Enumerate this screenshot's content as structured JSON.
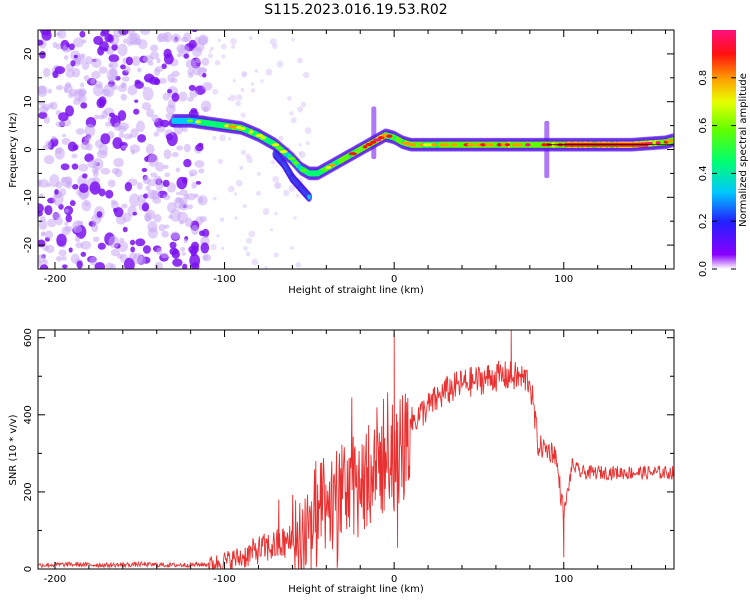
{
  "title": "S115.2023.016.19.53.R02",
  "chart_data": [
    {
      "type": "heatmap",
      "xlabel": "Height of straight line (km)",
      "ylabel": "Frequency (Hz)",
      "xlim": [
        -210,
        165
      ],
      "ylim": [
        -25,
        25
      ],
      "xticks": [
        -200,
        -100,
        0,
        100
      ],
      "yticks": [
        -20,
        -10,
        0,
        10,
        20
      ],
      "colorbar": {
        "label": "Normalized spectral amplitude",
        "range": [
          0,
          1
        ],
        "ticks": [
          "0.0",
          "0.2",
          "0.4",
          "0.6",
          "0.8"
        ],
        "tick_values": [
          0,
          0.2,
          0.4,
          0.6,
          0.8
        ]
      },
      "noise_region": {
        "x_range": [
          -210,
          -110
        ],
        "y_range": [
          -25,
          25
        ]
      },
      "ridge": {
        "x": [
          -130,
          -120,
          -110,
          -100,
          -90,
          -80,
          -70,
          -60,
          -55,
          -50,
          -45,
          -40,
          -35,
          -30,
          -25,
          -20,
          -15,
          -10,
          -5,
          0,
          5,
          10,
          20,
          40,
          60,
          80,
          90,
          100,
          120,
          140,
          160,
          165
        ],
        "y": [
          6,
          6,
          5.5,
          5,
          4.5,
          3,
          1,
          -2,
          -4,
          -5,
          -5,
          -4,
          -3,
          -2,
          -1,
          0,
          1,
          2,
          3,
          2.5,
          1.5,
          1,
          1,
          1,
          1,
          1,
          1,
          1,
          1,
          1,
          1.5,
          2
        ],
        "amplitude": [
          0.35,
          0.4,
          0.5,
          0.55,
          0.6,
          0.55,
          0.5,
          0.45,
          0.45,
          0.5,
          0.5,
          0.55,
          0.6,
          0.65,
          0.65,
          0.65,
          0.7,
          0.75,
          0.7,
          0.65,
          0.65,
          0.65,
          0.65,
          0.7,
          0.7,
          0.75,
          0.75,
          0.8,
          0.85,
          0.85,
          0.8,
          0.7
        ]
      },
      "secondary_ridge": {
        "x": [
          -70,
          -65,
          -60,
          -55,
          -50
        ],
        "y": [
          -1,
          -3,
          -6,
          -8,
          -10
        ]
      },
      "vertical_streaks": [
        {
          "x": -12,
          "y_range": [
            -2,
            9
          ]
        },
        {
          "x": 90,
          "y_range": [
            -6,
            6
          ]
        }
      ]
    },
    {
      "type": "line",
      "xlabel": "Height of straight line (km)",
      "ylabel": "SNR (10 * v/v)",
      "xlim": [
        -210,
        165
      ],
      "ylim": [
        0,
        620
      ],
      "xticks": [
        -200,
        -100,
        0,
        100
      ],
      "yticks": [
        0,
        200,
        400,
        600
      ],
      "series": [
        {
          "color": "#e83030",
          "x": [
            -210,
            -190,
            -170,
            -150,
            -130,
            -110,
            -100,
            -90,
            -80,
            -70,
            -60,
            -50,
            -40,
            -30,
            -20,
            -10,
            -5,
            0,
            5,
            10,
            20,
            30,
            40,
            50,
            60,
            70,
            80,
            85,
            90,
            95,
            100,
            105,
            110,
            130,
            150,
            165
          ],
          "y": [
            10,
            12,
            10,
            12,
            10,
            12,
            20,
            30,
            50,
            60,
            70,
            110,
            150,
            190,
            220,
            260,
            300,
            300,
            310,
            380,
            420,
            460,
            480,
            490,
            500,
            500,
            490,
            320,
            310,
            300,
            140,
            270,
            250,
            250,
            250,
            250
          ]
        }
      ],
      "spikes": [
        {
          "x": 0,
          "y": 610
        },
        {
          "x": 2,
          "y": 55
        },
        {
          "x": 69,
          "y": 620
        },
        {
          "x": 100,
          "y": 30
        },
        {
          "x": -68,
          "y": 180
        },
        {
          "x": -25,
          "y": 445
        }
      ]
    }
  ]
}
